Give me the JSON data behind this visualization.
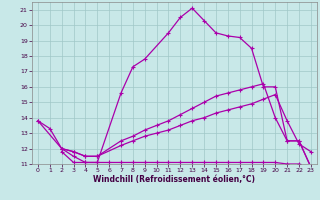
{
  "xlabel": "Windchill (Refroidissement éolien,°C)",
  "bg_color": "#c8e8e8",
  "grid_color": "#a0c8c8",
  "line_color": "#aa00aa",
  "xlim": [
    -0.5,
    23.5
  ],
  "ylim": [
    11,
    21.5
  ],
  "xticks": [
    0,
    1,
    2,
    3,
    4,
    5,
    6,
    7,
    8,
    9,
    10,
    11,
    12,
    13,
    14,
    15,
    16,
    17,
    18,
    19,
    20,
    21,
    22,
    23
  ],
  "yticks": [
    11,
    12,
    13,
    14,
    15,
    16,
    17,
    18,
    19,
    20,
    21
  ],
  "line1_x": [
    0,
    1,
    2,
    3,
    4,
    5,
    7,
    8,
    9,
    11,
    12,
    13,
    14,
    15,
    16,
    17,
    18,
    19,
    20,
    21,
    22,
    23
  ],
  "line1_y": [
    13.8,
    13.3,
    12.0,
    11.5,
    11.1,
    11.1,
    15.6,
    17.3,
    17.8,
    19.5,
    20.5,
    21.1,
    20.3,
    19.5,
    19.3,
    19.2,
    18.5,
    16.0,
    16.0,
    12.5,
    12.5,
    10.8
  ],
  "line2_x": [
    0,
    2,
    3,
    4,
    5,
    7,
    8,
    9,
    10,
    11,
    12,
    13,
    14,
    15,
    16,
    17,
    18,
    19,
    20,
    21,
    22,
    23
  ],
  "line2_y": [
    13.8,
    12.0,
    11.8,
    11.5,
    11.5,
    12.5,
    12.8,
    13.2,
    13.5,
    13.8,
    14.2,
    14.6,
    15.0,
    15.4,
    15.6,
    15.8,
    16.0,
    16.2,
    14.0,
    12.5,
    12.5,
    10.8
  ],
  "line3_x": [
    2,
    3,
    4,
    5,
    7,
    8,
    9,
    10,
    11,
    12,
    13,
    14,
    15,
    16,
    17,
    18,
    19,
    20,
    21,
    22,
    23
  ],
  "line3_y": [
    12.0,
    11.8,
    11.5,
    11.5,
    12.2,
    12.5,
    12.8,
    13.0,
    13.2,
    13.5,
    13.8,
    14.0,
    14.3,
    14.5,
    14.7,
    14.9,
    15.2,
    15.5,
    13.8,
    12.3,
    11.8
  ],
  "line4_x": [
    2,
    3,
    4,
    5,
    6,
    7,
    8,
    9,
    10,
    11,
    12,
    13,
    14,
    15,
    16,
    17,
    18,
    19,
    20,
    21,
    22,
    23
  ],
  "line4_y": [
    11.8,
    11.1,
    11.1,
    11.1,
    11.1,
    11.1,
    11.1,
    11.1,
    11.1,
    11.1,
    11.1,
    11.1,
    11.1,
    11.1,
    11.1,
    11.1,
    11.1,
    11.1,
    11.1,
    11.0,
    11.0,
    10.8
  ]
}
